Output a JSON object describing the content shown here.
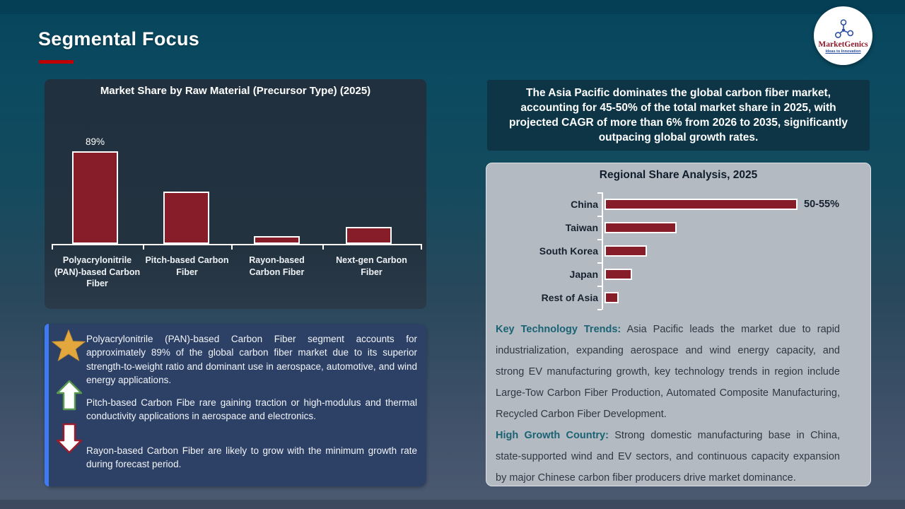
{
  "slide_title": "Segmental Focus",
  "logo": {
    "brand": "MarketGenics",
    "tagline": "Ideas to Innovation"
  },
  "colors": {
    "accent_red": "#c00000",
    "bar_fill": "#871d29",
    "bar_border": "#ffffff",
    "info_box_bg": "#2d4066",
    "info_stripe_blue": "#3e7bf2",
    "star_gold": "#e2a83e",
    "teal_lead": "#1a6375",
    "gray_panel_bg": "#b4bac1"
  },
  "chart_data": [
    {
      "type": "bar",
      "title": "Market Share by Raw Material (Precursor Type) (2025)",
      "categories": [
        "Polyacrylonitrile (PAN)-based Carbon Fiber",
        "Pitch-based Carbon Fiber",
        "Rayon-based Carbon Fiber",
        "Next-gen Carbon Fiber"
      ],
      "values": [
        89,
        50,
        7.5,
        16
      ],
      "data_labels": [
        "89%",
        "",
        "",
        ""
      ],
      "ylim": [
        0,
        100
      ],
      "grid": false,
      "legend": "none",
      "note": "only the PAN bar carries a printed value; other heights estimated from pixels"
    },
    {
      "type": "horizontal-bar",
      "title": "Regional Share Analysis, 2025",
      "categories": [
        "China",
        "Taiwan",
        "South Korea",
        "Japan",
        "Rest of Asia"
      ],
      "values": [
        52.5,
        19.7,
        11.6,
        7.5,
        3.9
      ],
      "data_labels": [
        "50-55%",
        "",
        "",
        "",
        ""
      ],
      "xlim": [
        0,
        60
      ],
      "grid": false,
      "legend": "none",
      "note": "only China carries a printed value (50-55%); other widths estimated from pixels"
    }
  ],
  "info_box": {
    "items": [
      {
        "icon": "star-icon",
        "text": "Polyacrylonitrile (PAN)-based Carbon Fiber segment accounts for approximately 89% of the global carbon fiber market due to its superior strength-to-weight ratio and dominant use in aerospace, automotive, and wind energy applications."
      },
      {
        "icon": "up-arrow-icon",
        "text": "Pitch-based Carbon Fibe rare gaining traction or high-modulus and thermal conductivity applications in aerospace and electronics."
      },
      {
        "icon": "down-arrow-icon",
        "text": "Rayon-based Carbon Fiber are likely to grow with the minimum growth rate during forecast period."
      }
    ]
  },
  "right_panel": {
    "highlight": "The Asia Pacific dominates the global carbon fiber market, accounting for 45-50% of the total market share in 2025, with projected CAGR of more than 6% from 2026 to 2035, significantly outpacing global growth rates.",
    "paragraphs": [
      {
        "lead": "Key Technology Trends:",
        "text": " Asia Pacific leads the market due to rapid industrialization, expanding aerospace and wind energy capacity, and strong EV manufacturing growth, key technology trends in region include Large-Tow Carbon Fiber Production, Automated Composite Manufacturing, Recycled Carbon Fiber Development."
      },
      {
        "lead": "High Growth Country:",
        "text": " Strong domestic manufacturing base in China, state-supported wind and EV sectors, and continuous capacity expansion by major Chinese carbon fiber producers drive market dominance."
      }
    ]
  }
}
